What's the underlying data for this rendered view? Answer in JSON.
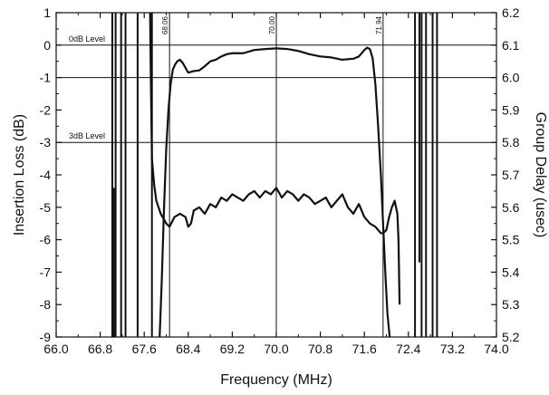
{
  "chart_data": {
    "type": "line",
    "xlabel": "Frequency (MHz)",
    "ylabel_left": "Insertion Loss (dB)",
    "ylabel_right": "Group Delay (usec)",
    "xlim": [
      66.0,
      74.0
    ],
    "ylim_left": [
      -9,
      1
    ],
    "ylim_right": [
      5.2,
      6.2
    ],
    "x_ticks": [
      "66.0",
      "66.8",
      "67.6",
      "68.4",
      "69.2",
      "70.0",
      "70.8",
      "71.6",
      "72.4",
      "73.2",
      "74.0"
    ],
    "y_ticks_left": [
      "1",
      "0",
      "-1",
      "-2",
      "-3",
      "-4",
      "-5",
      "-6",
      "-7",
      "-8",
      "-9"
    ],
    "y_ticks_right": [
      "6.2",
      "6.1",
      "6.0",
      "5.9",
      "5.8",
      "5.7",
      "5.6",
      "5.5",
      "5.4",
      "5.3",
      "5.2"
    ],
    "hlines": [
      {
        "y": 0,
        "label": "0dB Level"
      },
      {
        "y": -1,
        "label": ""
      },
      {
        "y": -3,
        "label": "3dB Level"
      }
    ],
    "vlines": [
      {
        "x": 68.06,
        "label": "68.06"
      },
      {
        "x": 70.0,
        "label": "70.00"
      },
      {
        "x": 71.94,
        "label": "71.94"
      }
    ],
    "series": [
      {
        "axis": "left",
        "x": [
          67.88,
          67.92,
          67.96,
          68.0,
          68.04,
          68.08,
          68.12,
          68.16,
          68.2,
          68.25,
          68.3,
          68.35,
          68.4,
          68.5,
          68.6,
          68.7,
          68.8,
          68.9,
          69.0,
          69.1,
          69.2,
          69.4,
          69.6,
          69.8,
          70.0,
          70.2,
          70.4,
          70.6,
          70.8,
          71.0,
          71.2,
          71.4,
          71.5,
          71.6,
          71.65,
          71.7,
          71.75,
          71.8,
          71.85,
          71.9,
          71.94,
          71.98,
          72.02,
          72.06
        ],
        "values": [
          -9.0,
          -7.2,
          -5.0,
          -3.2,
          -2.0,
          -1.2,
          -0.75,
          -0.6,
          -0.5,
          -0.45,
          -0.55,
          -0.7,
          -0.85,
          -0.8,
          -0.78,
          -0.65,
          -0.5,
          -0.45,
          -0.35,
          -0.28,
          -0.25,
          -0.25,
          -0.15,
          -0.12,
          -0.1,
          -0.12,
          -0.18,
          -0.28,
          -0.35,
          -0.38,
          -0.45,
          -0.42,
          -0.35,
          -0.15,
          -0.08,
          -0.12,
          -0.4,
          -1.2,
          -2.5,
          -4.0,
          -5.5,
          -7.0,
          -8.3,
          -9.0
        ]
      },
      {
        "axis": "right",
        "x": [
          67.7,
          67.72,
          67.74,
          67.78,
          67.82,
          67.9,
          68.0,
          68.06,
          68.15,
          68.25,
          68.35,
          68.4,
          68.45,
          68.5,
          68.6,
          68.7,
          68.8,
          68.9,
          69.0,
          69.1,
          69.2,
          69.3,
          69.4,
          69.5,
          69.6,
          69.7,
          69.8,
          69.9,
          70.0,
          70.1,
          70.2,
          70.3,
          70.4,
          70.5,
          70.6,
          70.7,
          70.8,
          70.9,
          71.0,
          71.1,
          71.2,
          71.3,
          71.4,
          71.5,
          71.6,
          71.7,
          71.8,
          71.9,
          71.94,
          72.0,
          72.05,
          72.1,
          72.15,
          72.2,
          72.22,
          72.24
        ],
        "values": [
          6.3,
          6.0,
          5.75,
          5.67,
          5.62,
          5.58,
          5.55,
          5.54,
          5.57,
          5.58,
          5.57,
          5.54,
          5.55,
          5.59,
          5.6,
          5.58,
          5.61,
          5.6,
          5.63,
          5.62,
          5.64,
          5.63,
          5.62,
          5.64,
          5.65,
          5.63,
          5.65,
          5.64,
          5.66,
          5.63,
          5.65,
          5.64,
          5.62,
          5.64,
          5.63,
          5.61,
          5.62,
          5.63,
          5.6,
          5.62,
          5.64,
          5.6,
          5.58,
          5.61,
          5.57,
          5.55,
          5.54,
          5.52,
          5.52,
          5.53,
          5.57,
          5.6,
          5.62,
          5.58,
          5.5,
          5.3
        ]
      }
    ],
    "out_of_band_spikes": [
      {
        "x": 67.02,
        "bottom": -9.0,
        "top": 1.0
      },
      {
        "x": 67.05,
        "bottom": -9.0,
        "top": -4.4
      },
      {
        "x": 67.08,
        "bottom": -9.0,
        "top": 1.0
      },
      {
        "x": 67.18,
        "bottom": -9.0,
        "top": 1.0
      },
      {
        "x": 67.26,
        "bottom": -9.0,
        "top": 1.0
      },
      {
        "x": 67.48,
        "bottom": -9.0,
        "top": 1.0
      },
      {
        "x": 67.74,
        "bottom": -9.0,
        "top": 1.0
      },
      {
        "x": 72.52,
        "bottom": -9.0,
        "top": 1.0
      },
      {
        "x": 72.6,
        "bottom": -6.7,
        "top": 1.0
      },
      {
        "x": 72.64,
        "bottom": -9.0,
        "top": 1.0
      },
      {
        "x": 72.72,
        "bottom": -9.0,
        "top": 1.0
      },
      {
        "x": 72.84,
        "bottom": -9.0,
        "top": 1.0
      },
      {
        "x": 72.92,
        "bottom": -9.0,
        "top": 1.0
      }
    ],
    "grid": false,
    "legend": "none"
  }
}
